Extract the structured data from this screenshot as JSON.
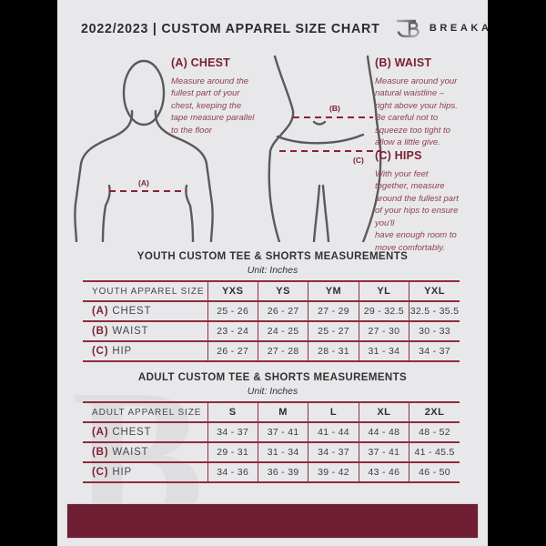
{
  "header": {
    "title": "2022/2023  |  CUSTOM APPAREL SIZE CHART",
    "brand": "BREAKAWAY",
    "logo_icon": "breakaway-b-logo"
  },
  "guide": {
    "chest": {
      "heading": "(A) CHEST",
      "body": "Measure around the\nfullest part of your\nchest, keeping the\ntape measure parallel\nto the floor"
    },
    "waist": {
      "heading": "(B) WAIST",
      "body": "Measure around your\nnatural waistline –\nright above your hips.\nBe careful not to\nsqueeze too tight to\nallow a little give."
    },
    "hips": {
      "heading": "(C) HIPS",
      "body": "With your feet\ntogether, measure\naround the fullest part\nof your hips to ensure\nyou'll\nhave enough room to\nmove comfortably."
    },
    "labels": {
      "chest": "(A)",
      "waist": "(B)",
      "hips": "(C)"
    }
  },
  "youth": {
    "title": "YOUTH CUSTOM TEE & SHORTS MEASUREMENTS",
    "unit": "Unit: Inches",
    "size_col_header": "YOUTH APPAREL SIZE",
    "sizes": [
      "YXS",
      "YS",
      "YM",
      "YL",
      "YXL"
    ],
    "rows": [
      {
        "prefix": "(A)",
        "label": "CHEST",
        "values": [
          "25 - 26",
          "26 - 27",
          "27 - 29",
          "29 - 32.5",
          "32.5 - 35.5"
        ]
      },
      {
        "prefix": "(B)",
        "label": "WAIST",
        "values": [
          "23 - 24",
          "24 - 25",
          "25 - 27",
          "27 - 30",
          "30 - 33"
        ]
      },
      {
        "prefix": "(C)",
        "label": "HIP",
        "values": [
          "26 - 27",
          "27 - 28",
          "28 - 31",
          "31 - 34",
          "34 - 37"
        ]
      }
    ]
  },
  "adult": {
    "title": "ADULT CUSTOM TEE & SHORTS MEASUREMENTS",
    "unit": "Unit: Inches",
    "size_col_header": "ADULT APPAREL SIZE",
    "sizes": [
      "S",
      "M",
      "L",
      "XL",
      "2XL"
    ],
    "rows": [
      {
        "prefix": "(A)",
        "label": "CHEST",
        "values": [
          "34 - 37",
          "37 - 41",
          "41 - 44",
          "44 - 48",
          "48 - 52"
        ]
      },
      {
        "prefix": "(B)",
        "label": "WAIST",
        "values": [
          "29 - 31",
          "31 - 34",
          "34 - 37",
          "37 - 41",
          "41 - 45.5"
        ]
      },
      {
        "prefix": "(C)",
        "label": "HIP",
        "values": [
          "34 - 36",
          "36 - 39",
          "39 - 42",
          "43 - 46",
          "46 - 50"
        ]
      }
    ]
  },
  "watermark_letter": "B",
  "colors": {
    "maroon_heading": "#7d2032",
    "maroon_line": "#8e1f33",
    "table_border": "#8f2c3c",
    "footer_bar": "#6f1e33",
    "page_background": "#e8e8ea",
    "diagram_stroke": "#5a5a5d"
  }
}
